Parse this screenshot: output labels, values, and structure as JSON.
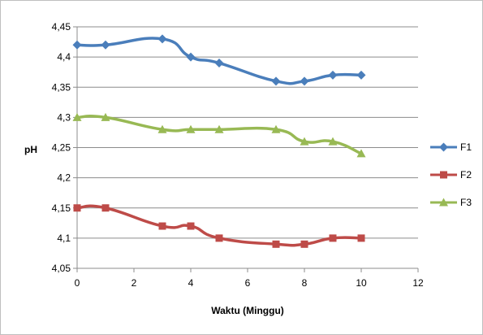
{
  "chart_data": {
    "type": "line",
    "xlabel": "Waktu (Minggu)",
    "ylabel": "pH",
    "xlim": [
      0,
      12
    ],
    "ylim": [
      4.05,
      4.45
    ],
    "x_ticks": [
      "0",
      "2",
      "4",
      "6",
      "8",
      "10",
      "12"
    ],
    "y_ticks": [
      "4,05",
      "4,1",
      "4,15",
      "4,2",
      "4,25",
      "4,3",
      "4,35",
      "4,4",
      "4,45"
    ],
    "grid": "horizontal",
    "legend_position": "right",
    "series": [
      {
        "name": "F1",
        "color": "#4a7ebb",
        "marker": "diamond",
        "x": [
          0,
          1,
          3,
          4,
          5,
          7,
          8,
          9,
          10
        ],
        "values": [
          4.42,
          4.42,
          4.43,
          4.4,
          4.39,
          4.36,
          4.36,
          4.37,
          4.37
        ]
      },
      {
        "name": "F2",
        "color": "#be4b48",
        "marker": "square",
        "x": [
          0,
          1,
          3,
          4,
          5,
          7,
          8,
          9,
          10
        ],
        "values": [
          4.15,
          4.15,
          4.12,
          4.12,
          4.1,
          4.09,
          4.09,
          4.1,
          4.1
        ]
      },
      {
        "name": "F3",
        "color": "#98b954",
        "marker": "triangle",
        "x": [
          0,
          1,
          3,
          4,
          5,
          7,
          8,
          9,
          10
        ],
        "values": [
          4.3,
          4.3,
          4.28,
          4.28,
          4.28,
          4.28,
          4.26,
          4.26,
          4.24
        ]
      }
    ]
  }
}
